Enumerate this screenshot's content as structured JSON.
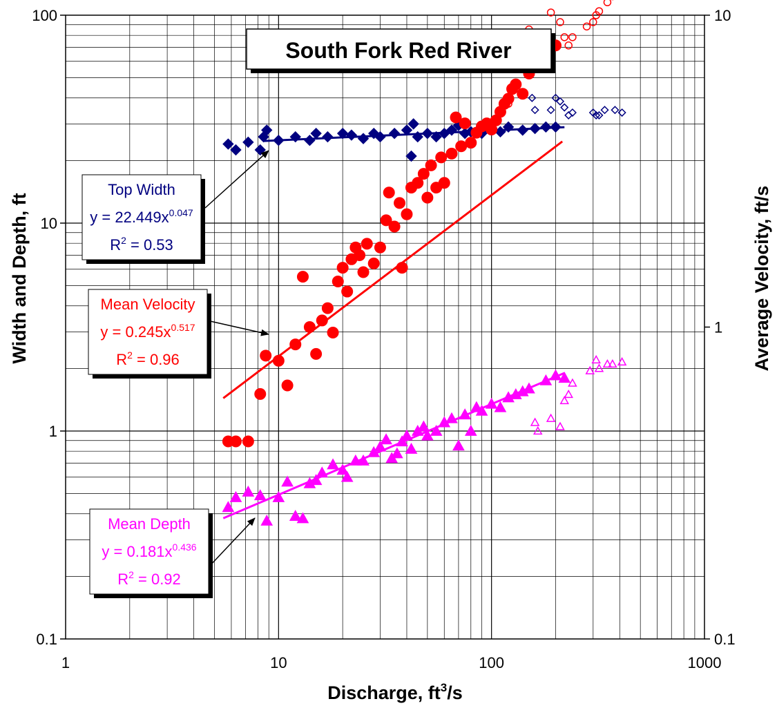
{
  "chart_data": {
    "type": "scatter",
    "title": "South Fork Red River",
    "xlabel": "Discharge, ft",
    "xlabel_superscript": "3",
    "xlabel_suffix": "/s",
    "ylabel": "Width and Depth, ft",
    "y2label": "Average Velocity, ft/s",
    "x_scale": "log",
    "y_scale": "log",
    "y2_scale": "log",
    "xlim": [
      1,
      1000
    ],
    "ylim": [
      0.1,
      100
    ],
    "y2lim": [
      0.1,
      10
    ],
    "x_ticks": [
      "1",
      "10",
      "100",
      "1000"
    ],
    "y_ticks": [
      "0.1",
      "1",
      "10",
      "100"
    ],
    "y2_ticks": [
      "0.1",
      "1",
      "10"
    ],
    "grid": true,
    "colors": {
      "top_width": "#000080",
      "mean_velocity": "#ff0000",
      "mean_depth": "#ff00ff"
    },
    "series": [
      {
        "name": "Top Width",
        "axis": "left",
        "color": "#000080",
        "marker": "diamond",
        "filled_points": [
          [
            5.8,
            24
          ],
          [
            6.3,
            22.5
          ],
          [
            7.2,
            24.5
          ],
          [
            8.2,
            22.5
          ],
          [
            8.5,
            26
          ],
          [
            8.8,
            28
          ],
          [
            10,
            25
          ],
          [
            12,
            26
          ],
          [
            14,
            25
          ],
          [
            15,
            27
          ],
          [
            17,
            26
          ],
          [
            20,
            27
          ],
          [
            22,
            26.5
          ],
          [
            25,
            25.5
          ],
          [
            28,
            27
          ],
          [
            30,
            26
          ],
          [
            35,
            27
          ],
          [
            40,
            28
          ],
          [
            42,
            21
          ],
          [
            43,
            30
          ],
          [
            45,
            26
          ],
          [
            50,
            27
          ],
          [
            55,
            26
          ],
          [
            60,
            27
          ],
          [
            65,
            28
          ],
          [
            70,
            29.5
          ],
          [
            75,
            27
          ],
          [
            80,
            27.5
          ],
          [
            90,
            27
          ],
          [
            100,
            28
          ],
          [
            110,
            27.5
          ],
          [
            120,
            29
          ],
          [
            140,
            28
          ],
          [
            160,
            28.5
          ],
          [
            180,
            29
          ],
          [
            200,
            29
          ]
        ],
        "open_points": [
          [
            155,
            40
          ],
          [
            160,
            35
          ],
          [
            190,
            35
          ],
          [
            200,
            40
          ],
          [
            210,
            38.5
          ],
          [
            220,
            36
          ],
          [
            230,
            33
          ],
          [
            240,
            34
          ],
          [
            300,
            34
          ],
          [
            310,
            33
          ],
          [
            320,
            33
          ],
          [
            340,
            35
          ],
          [
            380,
            35
          ],
          [
            410,
            34
          ]
        ],
        "fit_x_range": [
          8.5,
          220
        ],
        "equation": "y = 22.449x",
        "exponent": "0.047",
        "r2_label": "R",
        "r2_exp": "2",
        "r2_value": " = 0.53",
        "fit": {
          "a": 22.449,
          "b": 0.047
        }
      },
      {
        "name": "Mean Velocity",
        "axis": "right",
        "color": "#ff0000",
        "marker": "circle",
        "filled_points": [
          [
            5.8,
            0.43
          ],
          [
            6.3,
            0.43
          ],
          [
            7.2,
            0.43
          ],
          [
            8.2,
            0.61
          ],
          [
            8.7,
            0.81
          ],
          [
            10,
            0.78
          ],
          [
            11,
            0.65
          ],
          [
            12,
            0.88
          ],
          [
            13,
            1.45
          ],
          [
            14,
            1.0
          ],
          [
            15,
            0.82
          ],
          [
            16,
            1.05
          ],
          [
            17,
            1.15
          ],
          [
            18,
            0.96
          ],
          [
            19,
            1.4
          ],
          [
            20,
            1.55
          ],
          [
            21,
            1.3
          ],
          [
            22,
            1.65
          ],
          [
            23,
            1.8
          ],
          [
            24,
            1.7
          ],
          [
            25,
            1.5
          ],
          [
            26,
            1.85
          ],
          [
            28,
            1.6
          ],
          [
            30,
            1.8
          ],
          [
            32,
            2.2
          ],
          [
            33,
            2.7
          ],
          [
            35,
            2.1
          ],
          [
            37,
            2.5
          ],
          [
            38,
            1.55
          ],
          [
            40,
            2.3
          ],
          [
            42,
            2.8
          ],
          [
            45,
            2.9
          ],
          [
            48,
            3.1
          ],
          [
            50,
            2.6
          ],
          [
            52,
            3.3
          ],
          [
            55,
            2.8
          ],
          [
            58,
            3.5
          ],
          [
            60,
            2.9
          ],
          [
            65,
            3.6
          ],
          [
            68,
            4.7
          ],
          [
            72,
            3.8
          ],
          [
            75,
            4.5
          ],
          [
            80,
            3.9
          ],
          [
            85,
            4.2
          ],
          [
            90,
            4.4
          ],
          [
            95,
            4.5
          ],
          [
            100,
            4.3
          ],
          [
            105,
            4.6
          ],
          [
            110,
            4.9
          ],
          [
            115,
            5.2
          ],
          [
            120,
            5.4
          ],
          [
            125,
            5.8
          ],
          [
            130,
            6.0
          ],
          [
            140,
            5.6
          ],
          [
            150,
            6.5
          ],
          [
            160,
            7.2
          ],
          [
            180,
            7.5
          ],
          [
            200,
            8.0
          ]
        ],
        "open_points": [
          [
            120,
            5.2
          ],
          [
            150,
            9.0
          ],
          [
            155,
            8.5
          ],
          [
            190,
            10.2
          ],
          [
            210,
            9.5
          ],
          [
            220,
            8.5
          ],
          [
            230,
            8.0
          ],
          [
            240,
            8.5
          ],
          [
            280,
            9.2
          ],
          [
            300,
            9.5
          ],
          [
            310,
            10.0
          ],
          [
            320,
            10.3
          ],
          [
            350,
            11
          ],
          [
            370,
            11.5
          ],
          [
            410,
            13
          ]
        ],
        "fit_x_range": [
          5.5,
          215
        ],
        "equation": "y = 0.245x",
        "exponent": "0.517",
        "r2_label": "R",
        "r2_exp": "2",
        "r2_value": " = 0.96",
        "fit": {
          "a": 0.245,
          "b": 0.517
        }
      },
      {
        "name": "Mean Depth",
        "axis": "left",
        "color": "#ff00ff",
        "marker": "triangle",
        "filled_points": [
          [
            5.8,
            0.43
          ],
          [
            6.3,
            0.48
          ],
          [
            7.2,
            0.51
          ],
          [
            8.2,
            0.49
          ],
          [
            8.8,
            0.37
          ],
          [
            10,
            0.48
          ],
          [
            11,
            0.57
          ],
          [
            12,
            0.39
          ],
          [
            13,
            0.38
          ],
          [
            14,
            0.56
          ],
          [
            15,
            0.58
          ],
          [
            16,
            0.63
          ],
          [
            18,
            0.69
          ],
          [
            20,
            0.65
          ],
          [
            21,
            0.6
          ],
          [
            23,
            0.72
          ],
          [
            25,
            0.72
          ],
          [
            28,
            0.79
          ],
          [
            30,
            0.84
          ],
          [
            32,
            0.91
          ],
          [
            34,
            0.74
          ],
          [
            36,
            0.78
          ],
          [
            38,
            0.89
          ],
          [
            40,
            0.95
          ],
          [
            42,
            0.82
          ],
          [
            45,
            1.0
          ],
          [
            48,
            1.05
          ],
          [
            50,
            0.95
          ],
          [
            55,
            1.0
          ],
          [
            60,
            1.1
          ],
          [
            65,
            1.15
          ],
          [
            70,
            0.85
          ],
          [
            75,
            1.2
          ],
          [
            80,
            1.0
          ],
          [
            85,
            1.3
          ],
          [
            90,
            1.25
          ],
          [
            100,
            1.35
          ],
          [
            110,
            1.3
          ],
          [
            120,
            1.45
          ],
          [
            130,
            1.5
          ],
          [
            140,
            1.55
          ],
          [
            150,
            1.6
          ],
          [
            180,
            1.75
          ],
          [
            200,
            1.85
          ],
          [
            220,
            1.8
          ]
        ],
        "open_points": [
          [
            160,
            1.1
          ],
          [
            165,
            1.0
          ],
          [
            190,
            1.15
          ],
          [
            210,
            1.05
          ],
          [
            220,
            1.4
          ],
          [
            230,
            1.5
          ],
          [
            240,
            1.7
          ],
          [
            290,
            1.95
          ],
          [
            310,
            2.2
          ],
          [
            320,
            2.0
          ],
          [
            350,
            2.1
          ],
          [
            370,
            2.1
          ],
          [
            410,
            2.15
          ]
        ],
        "fit_x_range": [
          5.5,
          220
        ],
        "equation": "y = 0.181x",
        "exponent": "0.436",
        "r2_label": "R",
        "r2_exp": "2",
        "r2_value": " = 0.92",
        "fit": {
          "a": 0.181,
          "b": 0.436
        }
      }
    ]
  }
}
